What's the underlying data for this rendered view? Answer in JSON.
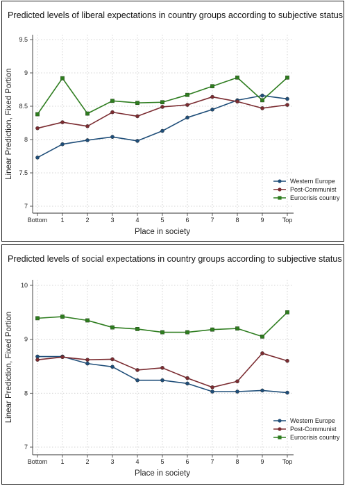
{
  "colors": {
    "western_europe": "#1f4e79",
    "post_communist": "#7b2c31",
    "eurocrisis": "#2e7d1f",
    "grid": "#c8c8c8",
    "axis": "#333333"
  },
  "chart_data": [
    {
      "type": "line",
      "title": "Predicted levels of liberal expectations in country groups according to subjective status",
      "xlabel": "Place in society",
      "ylabel": "Linear Prediction, Fixed Portion",
      "categories": [
        "Bottom",
        "1",
        "2",
        "3",
        "4",
        "5",
        "6",
        "7",
        "8",
        "9",
        "Top"
      ],
      "ylim": [
        7,
        9.5
      ],
      "yticks": [
        "7",
        "7.5",
        "8",
        "8.5",
        "9",
        "9.5"
      ],
      "grid": true,
      "legend_position": "right",
      "series": [
        {
          "name": "Western Europe",
          "color_key": "western_europe",
          "marker": "circle",
          "values": [
            7.73,
            7.93,
            7.99,
            8.04,
            7.98,
            8.13,
            8.33,
            8.45,
            8.59,
            8.66,
            8.61
          ]
        },
        {
          "name": "Post-Communist",
          "color_key": "post_communist",
          "marker": "circle",
          "values": [
            8.17,
            8.26,
            8.2,
            8.41,
            8.35,
            8.49,
            8.52,
            8.64,
            8.57,
            8.47,
            8.52
          ]
        },
        {
          "name": "Eurocrisis country",
          "color_key": "eurocrisis",
          "marker": "square",
          "values": [
            8.38,
            8.92,
            8.39,
            8.58,
            8.55,
            8.56,
            8.67,
            8.8,
            8.93,
            8.59,
            8.93
          ]
        }
      ]
    },
    {
      "type": "line",
      "title": "Predicted levels of social expectations in country groups according to subjective status",
      "xlabel": "Place in society",
      "ylabel": "Linear Prediction, Fixed Portion",
      "categories": [
        "Bottom",
        "1",
        "2",
        "3",
        "4",
        "5",
        "6",
        "7",
        "8",
        "9",
        "Top"
      ],
      "ylim": [
        7,
        10
      ],
      "yticks": [
        "7",
        "8",
        "9",
        "10"
      ],
      "grid": true,
      "legend_position": "right",
      "series": [
        {
          "name": "Western Europe",
          "color_key": "western_europe",
          "marker": "circle",
          "values": [
            8.68,
            8.68,
            8.55,
            8.49,
            8.24,
            8.24,
            8.18,
            8.03,
            8.03,
            8.05,
            8.01
          ]
        },
        {
          "name": "Post-Communist",
          "color_key": "post_communist",
          "marker": "circle",
          "values": [
            8.62,
            8.67,
            8.62,
            8.63,
            8.43,
            8.47,
            8.28,
            8.11,
            8.22,
            8.74,
            8.6
          ]
        },
        {
          "name": "Eurocrisis country",
          "color_key": "eurocrisis",
          "marker": "square",
          "values": [
            9.39,
            9.42,
            9.35,
            9.22,
            9.19,
            9.13,
            9.13,
            9.18,
            9.2,
            9.05,
            9.5
          ]
        }
      ]
    }
  ]
}
